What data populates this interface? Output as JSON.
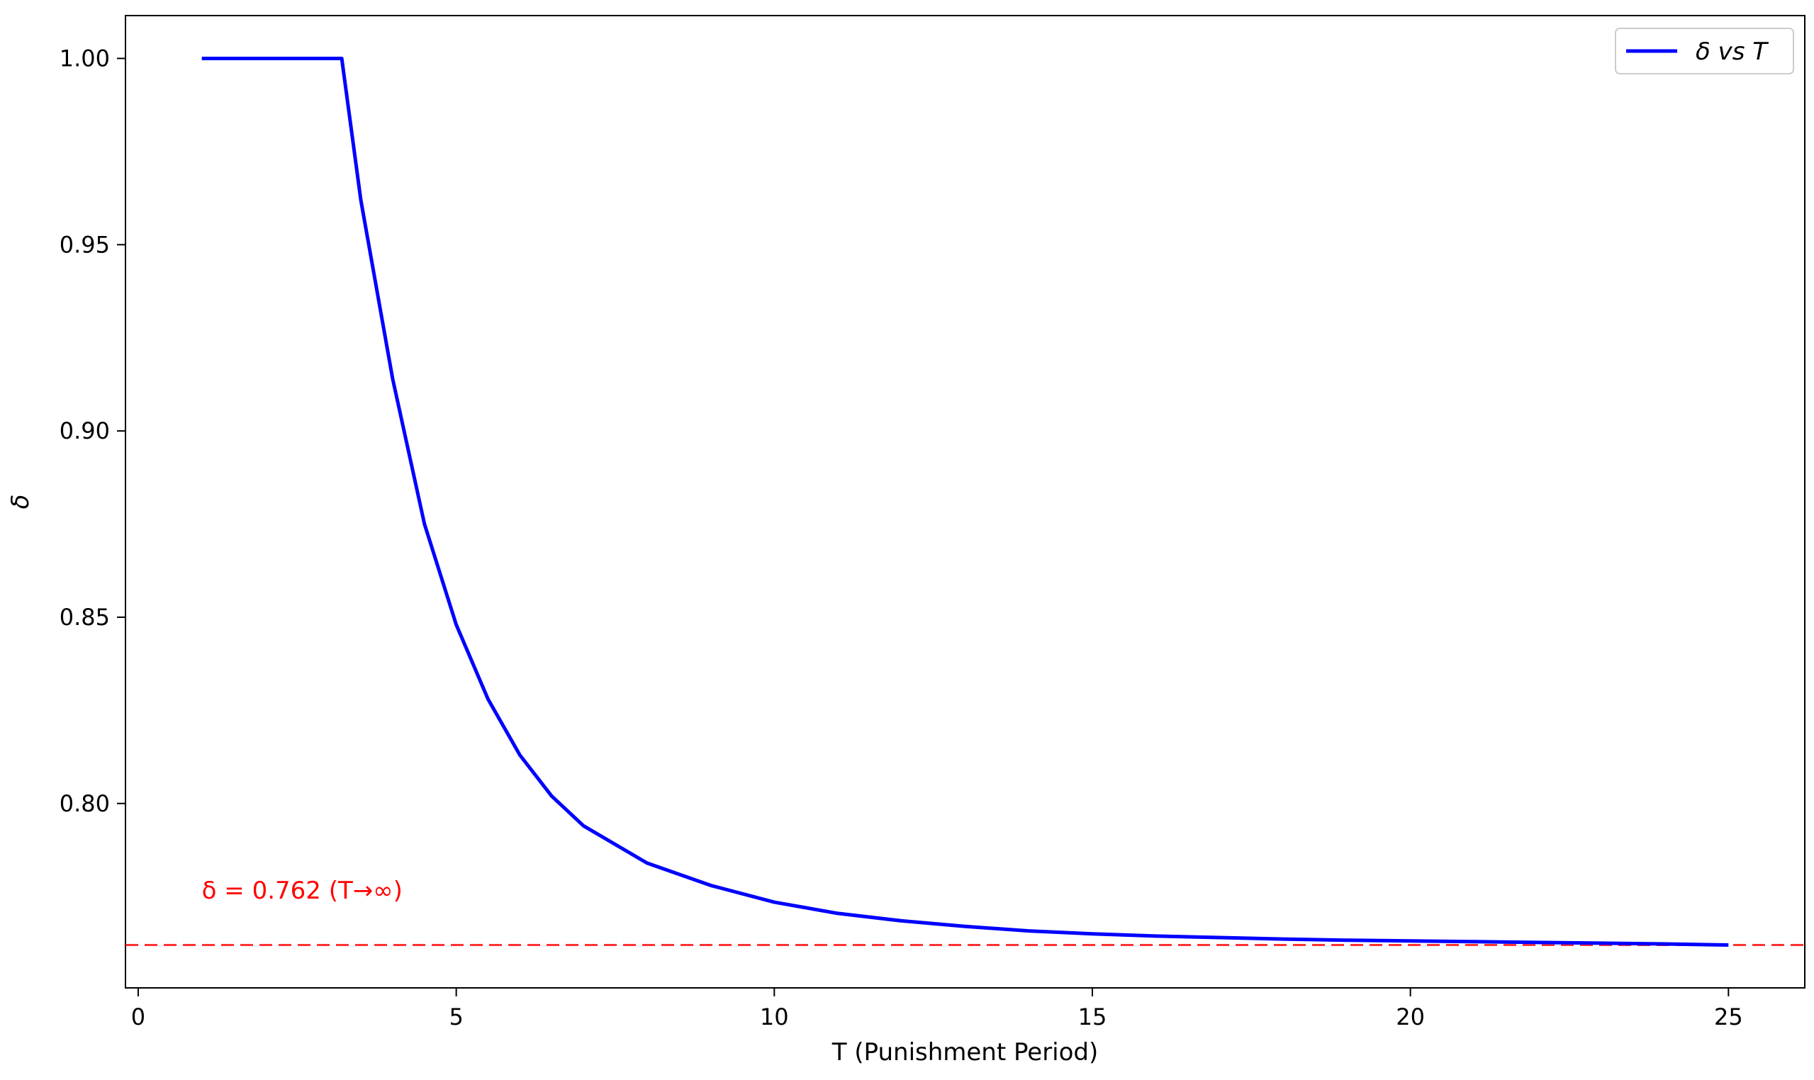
{
  "chart_data": {
    "type": "line",
    "title": "",
    "xlabel": "T (Punishment Period)",
    "ylabel": "δ",
    "xlim": [
      -0.2,
      26.2
    ],
    "ylim": [
      0.7505,
      1.0115
    ],
    "xticks": [
      0,
      5,
      10,
      15,
      20,
      25
    ],
    "xtick_labels": [
      "0",
      "5",
      "10",
      "15",
      "20",
      "25"
    ],
    "yticks": [
      0.8,
      0.85,
      0.9,
      0.95,
      1.0
    ],
    "ytick_labels": [
      "0.80",
      "0.85",
      "0.90",
      "0.95",
      "1.00"
    ],
    "grid": false,
    "legend_position": "top-right",
    "series": [
      {
        "name": "δ vs T",
        "color": "#0000ff",
        "x": [
          1,
          2,
          3,
          3.2,
          3.5,
          4,
          4.5,
          5,
          5.5,
          6,
          6.5,
          7,
          8,
          9,
          10,
          11,
          12,
          13,
          14,
          15,
          16,
          17,
          18,
          19,
          20,
          21,
          22,
          23,
          24,
          25
        ],
        "y": [
          1.0,
          1.0,
          1.0,
          1.0,
          0.962,
          0.914,
          0.875,
          0.848,
          0.828,
          0.813,
          0.802,
          0.794,
          0.784,
          0.778,
          0.7735,
          0.7705,
          0.7685,
          0.767,
          0.7658,
          0.765,
          0.7644,
          0.764,
          0.7636,
          0.7633,
          0.7631,
          0.7629,
          0.7627,
          0.7625,
          0.7623,
          0.762
        ]
      }
    ],
    "reference_lines": [
      {
        "orientation": "horizontal",
        "y": 0.762,
        "color": "#ff0000",
        "style": "dashed"
      }
    ],
    "annotations": [
      {
        "text": "δ = 0.762 (T→∞)",
        "x": 1,
        "y": 0.7745,
        "color": "#ff0000"
      }
    ]
  }
}
